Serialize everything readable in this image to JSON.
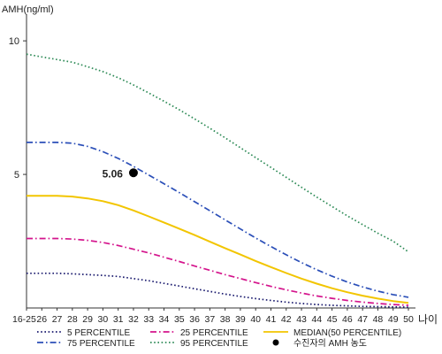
{
  "chart_data": {
    "type": "line",
    "ylabel": "AMH(ng/ml)",
    "xlabel": "나이",
    "categories": [
      "16-25",
      "26",
      "27",
      "28",
      "29",
      "30",
      "31",
      "32",
      "33",
      "34",
      "35",
      "36",
      "37",
      "38",
      "39",
      "40",
      "41",
      "42",
      "43",
      "44",
      "45",
      "46",
      "47",
      "48",
      "49",
      "50"
    ],
    "ylim": [
      0,
      10.8
    ],
    "yticks": [
      5,
      10
    ],
    "grid": false,
    "legend_position": "bottom",
    "series": [
      {
        "name": "5 PERCENTILE",
        "color": "#1a1a6e",
        "dash": "dotted",
        "values": [
          1.3,
          1.3,
          1.3,
          1.28,
          1.25,
          1.22,
          1.18,
          1.1,
          1.02,
          0.92,
          0.82,
          0.72,
          0.62,
          0.52,
          0.43,
          0.35,
          0.28,
          0.22,
          0.17,
          0.13,
          0.1,
          0.08,
          0.06,
          0.05,
          0.04,
          0.03
        ]
      },
      {
        "name": "25 PERCENTILE",
        "color": "#d4148c",
        "dash": "dashdot",
        "values": [
          2.6,
          2.6,
          2.6,
          2.58,
          2.53,
          2.45,
          2.34,
          2.2,
          2.06,
          1.9,
          1.74,
          1.57,
          1.41,
          1.25,
          1.1,
          0.95,
          0.81,
          0.68,
          0.56,
          0.45,
          0.36,
          0.28,
          0.22,
          0.17,
          0.13,
          0.1
        ]
      },
      {
        "name": "MEDIAN(50 PERCENTILE)",
        "color": "#f2c500",
        "dash": "solid",
        "values": [
          4.2,
          4.2,
          4.2,
          4.17,
          4.1,
          4.0,
          3.85,
          3.65,
          3.43,
          3.2,
          2.97,
          2.73,
          2.48,
          2.24,
          2.0,
          1.76,
          1.53,
          1.31,
          1.1,
          0.91,
          0.74,
          0.59,
          0.46,
          0.35,
          0.26,
          0.19
        ]
      },
      {
        "name": "75 PERCENTILE",
        "color": "#2b4fb8",
        "dash": "dashdot",
        "values": [
          6.2,
          6.2,
          6.2,
          6.17,
          6.05,
          5.85,
          5.6,
          5.3,
          4.98,
          4.65,
          4.32,
          3.98,
          3.64,
          3.3,
          2.96,
          2.62,
          2.3,
          1.99,
          1.7,
          1.43,
          1.19,
          0.97,
          0.79,
          0.63,
          0.5,
          0.4
        ]
      },
      {
        "name": "95 PERCENTILE",
        "color": "#2e8b57",
        "dash": "dotted",
        "values": [
          9.5,
          9.4,
          9.3,
          9.2,
          9.03,
          8.85,
          8.62,
          8.35,
          8.05,
          7.74,
          7.42,
          7.08,
          6.73,
          6.37,
          6.0,
          5.63,
          5.26,
          4.89,
          4.52,
          4.15,
          3.8,
          3.45,
          3.12,
          2.8,
          2.5,
          2.1
        ]
      }
    ],
    "point": {
      "x": "32",
      "y": 5.06,
      "label": "5.06",
      "name": "수진자의 AMH 농도",
      "color": "#000000"
    }
  }
}
